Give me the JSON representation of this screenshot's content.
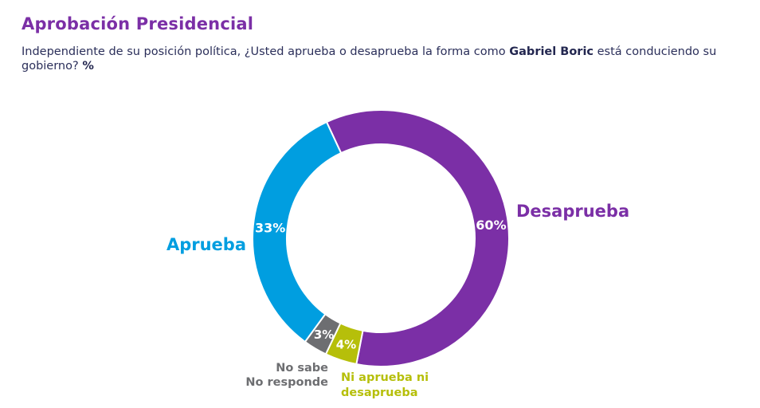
{
  "header": {
    "title": "Aprobación Presidencial",
    "question_before": "Independiente de su posición política, ¿Usted aprueba o desaprueba la forma como ",
    "question_name": "Gabriel Boric",
    "question_after": " está conduciendo su gobierno?",
    "question_unit": "%"
  },
  "colors": {
    "title": "#7b2fa6",
    "subtitle": "#2b2f5a"
  },
  "chart_data": {
    "type": "pie",
    "variant": "donut",
    "unit": "%",
    "slices": [
      {
        "name": "Desaprueba",
        "value": 60,
        "label": "60%",
        "color": "#7b2fa6"
      },
      {
        "name": "Ni aprueba ni desaprueba",
        "label_lines": [
          "Ni aprueba ni",
          "desaprueba"
        ],
        "value": 4,
        "label": "4%",
        "color": "#b6bf0a"
      },
      {
        "name": "No sabe No responde",
        "label_lines": [
          "No sabe",
          "No responde"
        ],
        "value": 3,
        "label": "3%",
        "color": "#6d6e71"
      },
      {
        "name": "Aprueba",
        "value": 33,
        "label": "33%",
        "color": "#009ee0"
      }
    ]
  }
}
